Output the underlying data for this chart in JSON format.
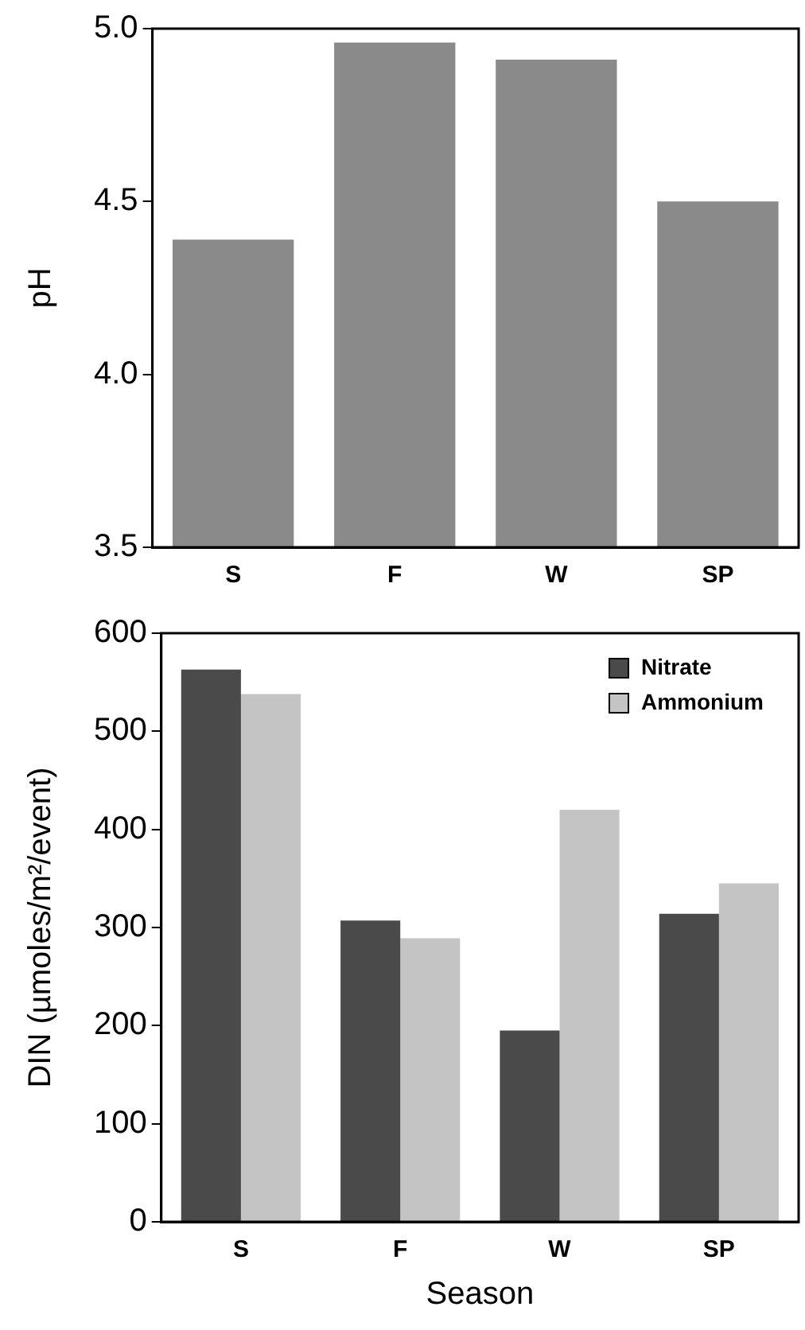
{
  "chart_data": [
    {
      "type": "bar",
      "ylabel": "pH",
      "categories": [
        "S",
        "F",
        "W",
        "SP"
      ],
      "values": [
        4.39,
        4.96,
        4.91,
        4.5
      ],
      "color": "#8a8a8a",
      "ylim": [
        3.5,
        5.0
      ],
      "yticks": [
        {
          "value": 3.5,
          "label": "3.5"
        },
        {
          "value": 4,
          "label": "4.0"
        },
        {
          "value": 4.5,
          "label": "4.5"
        },
        {
          "value": 5,
          "label": "5.0"
        }
      ],
      "grid": false,
      "legend": false
    },
    {
      "type": "bar",
      "ylabel": "DIN (µmoles/m²/event)",
      "xlabel": "Season",
      "categories": [
        "S",
        "F",
        "W",
        "SP"
      ],
      "series": [
        {
          "name": "Nitrate",
          "color": "#4a4a4a",
          "values": [
            563,
            307,
            195,
            314
          ]
        },
        {
          "name": "Ammonium",
          "color": "#c4c4c4",
          "values": [
            538,
            289,
            420,
            345
          ]
        }
      ],
      "ylim": [
        0,
        600
      ],
      "yticks": [
        0,
        100,
        200,
        300,
        400,
        500,
        600
      ],
      "grid": false,
      "legend": "top right"
    }
  ]
}
